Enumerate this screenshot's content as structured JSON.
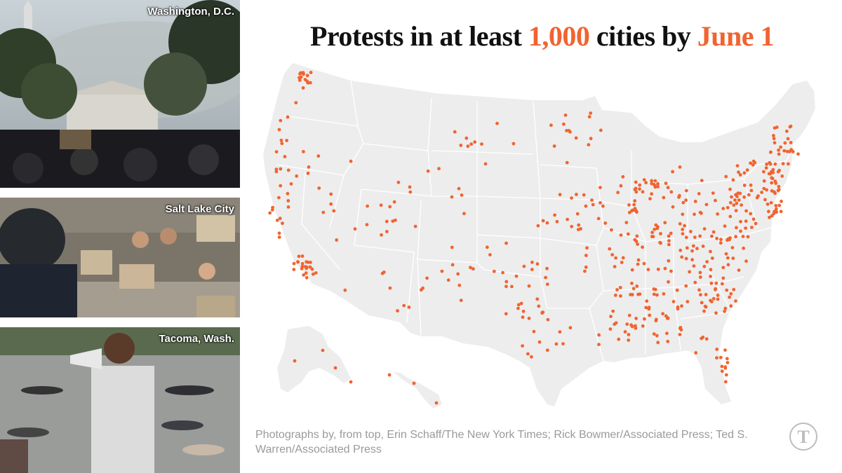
{
  "title": {
    "pre": "Protests in at least ",
    "count": "1,000",
    "mid": " cities by ",
    "date": "June 1"
  },
  "photos": [
    {
      "caption": "Washington, D.C."
    },
    {
      "caption": "Salt Lake City"
    },
    {
      "caption": "Tacoma, Wash."
    }
  ],
  "credit": "Photographs by, from top, Erin Schaff/The New York Times; Rick Bowmer/Associated Press; Ted S. Warren/Associated Press",
  "colors": {
    "accent": "#f06431",
    "land": "#ededed",
    "borders": "#ffffff",
    "text": "#111111",
    "credit": "#9a9a9a"
  },
  "logo": {
    "icon": "nyt-logo-icon"
  }
}
